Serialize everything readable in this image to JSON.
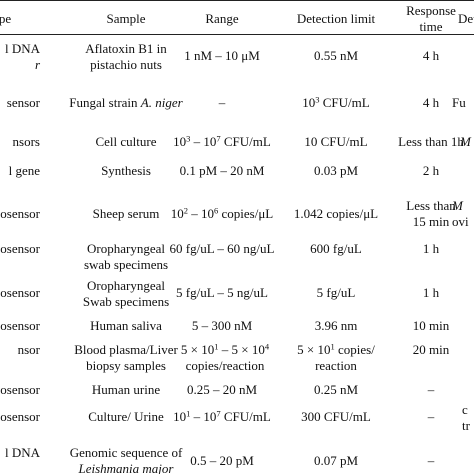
{
  "header": {
    "type": "pe",
    "sample": "Sample",
    "range": "Range",
    "detection_limit": "Detection limit",
    "response_time_line1": "Response",
    "response_time_line2": "time",
    "detail_cut": "Det"
  },
  "rows": [
    {
      "type_line1": "l DNA",
      "type_line2": "r",
      "sample_line1": "Aflatoxin B1 in",
      "sample_line2": "pistachio nuts",
      "range": "1 nM – 10 μM",
      "limit": "0.55 nM",
      "time": "4 h"
    },
    {
      "type": "sensor",
      "sample_a": "Fungal strain ",
      "sample_b": "A. niger",
      "range": "–",
      "limit_base": "10",
      "limit_exp": "3",
      "limit_unit": " CFU/mL",
      "time": "4 h",
      "detail_cut": "Fu"
    },
    {
      "type": "nsors",
      "sample": "Cell culture",
      "range_a": "10",
      "range_exp1": "3",
      "range_b": " – 10",
      "range_exp2": "7",
      "range_unit": " CFU/mL",
      "limit": "10 CFU/mL",
      "time": "Less than 1h",
      "detail_cut": "M"
    },
    {
      "type": "l gene",
      "sample": "Synthesis",
      "range": "0.1 pM – 20 nM",
      "limit": "0.03 pM",
      "time": "2 h"
    },
    {
      "type": "osensor",
      "sample": "Sheep serum",
      "range_a": "10",
      "range_exp1": "2",
      "range_b": " – 10",
      "range_exp2": "6",
      "range_unit": " copies/μL",
      "limit": "1.042 copies/μL",
      "time_line1": "Less than",
      "time_line2": "15 min",
      "detail_cut_line1": "M",
      "detail_cut_line2": "ovi"
    },
    {
      "type": "osensor",
      "sample_line1": "Oropharyngeal",
      "sample_line2": "swab specimens",
      "range": "60 fg/uL – 60 ng/uL",
      "limit": "600 fg/uL",
      "time": "1 h"
    },
    {
      "type": "osensor",
      "sample_line1": "Oropharyngeal",
      "sample_line2": "Swab specimens",
      "range": "5 fg/uL – 5 ng/uL",
      "limit": "5 fg/uL",
      "time": "1 h"
    },
    {
      "type": "osensor",
      "sample": "Human saliva",
      "range": "5 – 300 nM",
      "limit": "3.96 nm",
      "time": "10 min"
    },
    {
      "type": "nsor",
      "sample_line1": "Blood plasma/Liver",
      "sample_line2": "biopsy samples",
      "range_a": "5 × 10",
      "range_exp1": "1",
      "range_b": " – 5 × 10",
      "range_exp2": "4",
      "range_line2": "copies/reaction",
      "limit_a": "5 × 10",
      "limit_exp": "1",
      "limit_b": " copies/",
      "limit_line2": "reaction",
      "time": "20 min"
    },
    {
      "type": "osensor",
      "sample": "Human urine",
      "range": "0.25 – 20 nM",
      "limit": "0.25 nM",
      "time": "–"
    },
    {
      "type": "iosensor",
      "sample": "Culture/ Urine",
      "range_a": "10",
      "range_exp1": "1",
      "range_b": " – 10",
      "range_exp2": "7",
      "range_unit": " CFU/mL",
      "limit": "300 CFU/mL",
      "time": "–",
      "detail_cut_line1": "c",
      "detail_cut_line2": "tr"
    },
    {
      "type_line1": "l DNA",
      "type_line2": "",
      "sample_line1": "Genomic sequence of",
      "sample_line2a": "Leishmania",
      "sample_line2b": " major",
      "range": "0.5 – 20 pM",
      "limit": "0.07 pM",
      "time": "–"
    }
  ]
}
